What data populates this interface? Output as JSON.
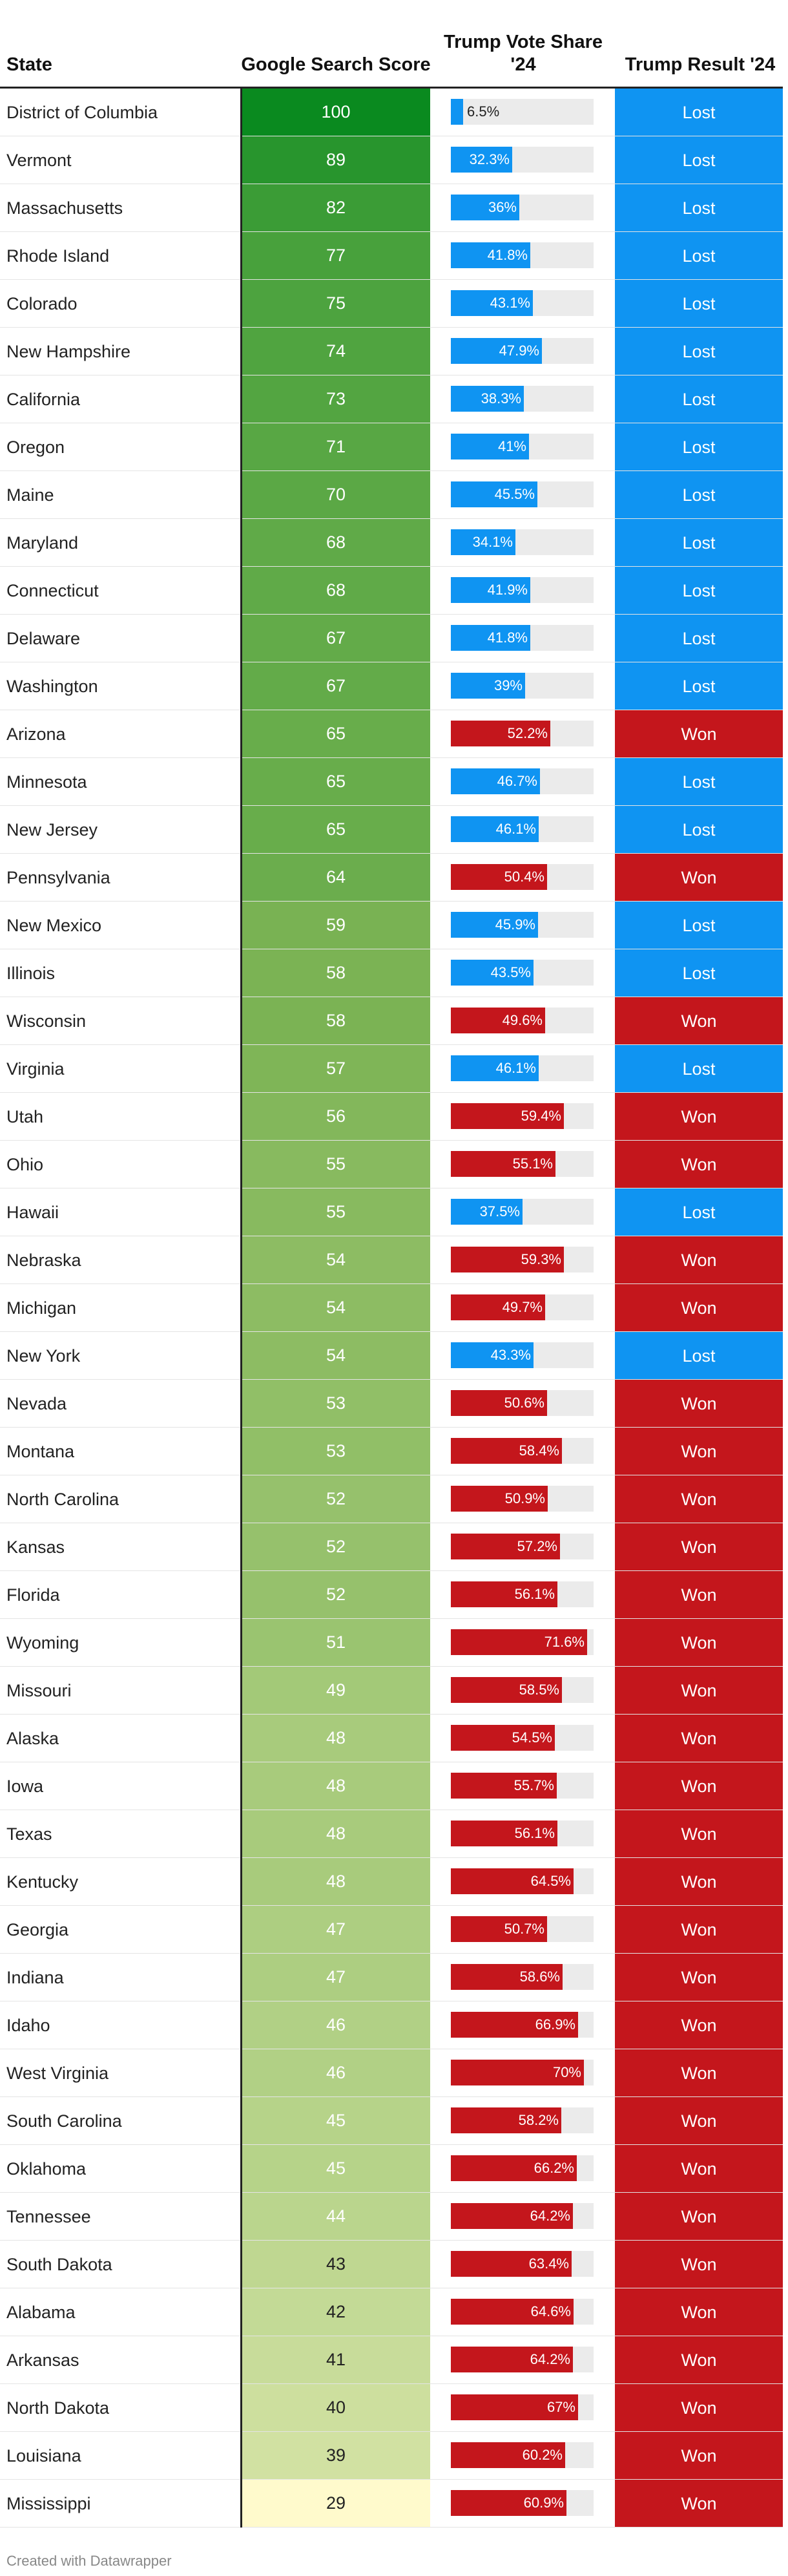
{
  "header": {
    "state": "State",
    "score": "Google Search Score",
    "share": "Trump Vote Share '24",
    "result": "Trump Result '24"
  },
  "footer": "Created with Datawrapper",
  "colors": {
    "lost": "#0f94f2",
    "won": "#c4161c",
    "score_high": "#0a8a1f",
    "score_low": "#fffacc",
    "track": "#ebebeb"
  },
  "chart_data": {
    "type": "table",
    "columns": [
      "State",
      "Google Search Score",
      "Trump Vote Share '24",
      "Trump Result '24"
    ],
    "share_range": [
      0,
      75
    ],
    "rows": [
      {
        "state": "District of Columbia",
        "score": 100,
        "share": 6.5,
        "share_label": "6.5%",
        "result": "Lost"
      },
      {
        "state": "Vermont",
        "score": 89,
        "share": 32.3,
        "share_label": "32.3%",
        "result": "Lost"
      },
      {
        "state": "Massachusetts",
        "score": 82,
        "share": 36,
        "share_label": "36%",
        "result": "Lost"
      },
      {
        "state": "Rhode Island",
        "score": 77,
        "share": 41.8,
        "share_label": "41.8%",
        "result": "Lost"
      },
      {
        "state": "Colorado",
        "score": 75,
        "share": 43.1,
        "share_label": "43.1%",
        "result": "Lost"
      },
      {
        "state": "New Hampshire",
        "score": 74,
        "share": 47.9,
        "share_label": "47.9%",
        "result": "Lost"
      },
      {
        "state": "California",
        "score": 73,
        "share": 38.3,
        "share_label": "38.3%",
        "result": "Lost"
      },
      {
        "state": "Oregon",
        "score": 71,
        "share": 41,
        "share_label": "41%",
        "result": "Lost"
      },
      {
        "state": "Maine",
        "score": 70,
        "share": 45.5,
        "share_label": "45.5%",
        "result": "Lost"
      },
      {
        "state": "Maryland",
        "score": 68,
        "share": 34.1,
        "share_label": "34.1%",
        "result": "Lost"
      },
      {
        "state": "Connecticut",
        "score": 68,
        "share": 41.9,
        "share_label": "41.9%",
        "result": "Lost"
      },
      {
        "state": "Delaware",
        "score": 67,
        "share": 41.8,
        "share_label": "41.8%",
        "result": "Lost"
      },
      {
        "state": "Washington",
        "score": 67,
        "share": 39,
        "share_label": "39%",
        "result": "Lost"
      },
      {
        "state": "Arizona",
        "score": 65,
        "share": 52.2,
        "share_label": "52.2%",
        "result": "Won"
      },
      {
        "state": "Minnesota",
        "score": 65,
        "share": 46.7,
        "share_label": "46.7%",
        "result": "Lost"
      },
      {
        "state": "New Jersey",
        "score": 65,
        "share": 46.1,
        "share_label": "46.1%",
        "result": "Lost"
      },
      {
        "state": "Pennsylvania",
        "score": 64,
        "share": 50.4,
        "share_label": "50.4%",
        "result": "Won"
      },
      {
        "state": "New Mexico",
        "score": 59,
        "share": 45.9,
        "share_label": "45.9%",
        "result": "Lost"
      },
      {
        "state": "Illinois",
        "score": 58,
        "share": 43.5,
        "share_label": "43.5%",
        "result": "Lost"
      },
      {
        "state": "Wisconsin",
        "score": 58,
        "share": 49.6,
        "share_label": "49.6%",
        "result": "Won"
      },
      {
        "state": "Virginia",
        "score": 57,
        "share": 46.1,
        "share_label": "46.1%",
        "result": "Lost"
      },
      {
        "state": "Utah",
        "score": 56,
        "share": 59.4,
        "share_label": "59.4%",
        "result": "Won"
      },
      {
        "state": "Ohio",
        "score": 55,
        "share": 55.1,
        "share_label": "55.1%",
        "result": "Won"
      },
      {
        "state": "Hawaii",
        "score": 55,
        "share": 37.5,
        "share_label": "37.5%",
        "result": "Lost"
      },
      {
        "state": "Nebraska",
        "score": 54,
        "share": 59.3,
        "share_label": "59.3%",
        "result": "Won"
      },
      {
        "state": "Michigan",
        "score": 54,
        "share": 49.7,
        "share_label": "49.7%",
        "result": "Won"
      },
      {
        "state": "New York",
        "score": 54,
        "share": 43.3,
        "share_label": "43.3%",
        "result": "Lost"
      },
      {
        "state": "Nevada",
        "score": 53,
        "share": 50.6,
        "share_label": "50.6%",
        "result": "Won"
      },
      {
        "state": "Montana",
        "score": 53,
        "share": 58.4,
        "share_label": "58.4%",
        "result": "Won"
      },
      {
        "state": "North Carolina",
        "score": 52,
        "share": 50.9,
        "share_label": "50.9%",
        "result": "Won"
      },
      {
        "state": "Kansas",
        "score": 52,
        "share": 57.2,
        "share_label": "57.2%",
        "result": "Won"
      },
      {
        "state": "Florida",
        "score": 52,
        "share": 56.1,
        "share_label": "56.1%",
        "result": "Won"
      },
      {
        "state": "Wyoming",
        "score": 51,
        "share": 71.6,
        "share_label": "71.6%",
        "result": "Won"
      },
      {
        "state": "Missouri",
        "score": 49,
        "share": 58.5,
        "share_label": "58.5%",
        "result": "Won"
      },
      {
        "state": "Alaska",
        "score": 48,
        "share": 54.5,
        "share_label": "54.5%",
        "result": "Won"
      },
      {
        "state": "Iowa",
        "score": 48,
        "share": 55.7,
        "share_label": "55.7%",
        "result": "Won"
      },
      {
        "state": "Texas",
        "score": 48,
        "share": 56.1,
        "share_label": "56.1%",
        "result": "Won"
      },
      {
        "state": "Kentucky",
        "score": 48,
        "share": 64.5,
        "share_label": "64.5%",
        "result": "Won"
      },
      {
        "state": "Georgia",
        "score": 47,
        "share": 50.7,
        "share_label": "50.7%",
        "result": "Won"
      },
      {
        "state": "Indiana",
        "score": 47,
        "share": 58.6,
        "share_label": "58.6%",
        "result": "Won"
      },
      {
        "state": "Idaho",
        "score": 46,
        "share": 66.9,
        "share_label": "66.9%",
        "result": "Won"
      },
      {
        "state": "West Virginia",
        "score": 46,
        "share": 70,
        "share_label": "70%",
        "result": "Won"
      },
      {
        "state": "South Carolina",
        "score": 45,
        "share": 58.2,
        "share_label": "58.2%",
        "result": "Won"
      },
      {
        "state": "Oklahoma",
        "score": 45,
        "share": 66.2,
        "share_label": "66.2%",
        "result": "Won"
      },
      {
        "state": "Tennessee",
        "score": 44,
        "share": 64.2,
        "share_label": "64.2%",
        "result": "Won"
      },
      {
        "state": "South Dakota",
        "score": 43,
        "share": 63.4,
        "share_label": "63.4%",
        "result": "Won"
      },
      {
        "state": "Alabama",
        "score": 42,
        "share": 64.6,
        "share_label": "64.6%",
        "result": "Won"
      },
      {
        "state": "Arkansas",
        "score": 41,
        "share": 64.2,
        "share_label": "64.2%",
        "result": "Won"
      },
      {
        "state": "North Dakota",
        "score": 40,
        "share": 67,
        "share_label": "67%",
        "result": "Won"
      },
      {
        "state": "Louisiana",
        "score": 39,
        "share": 60.2,
        "share_label": "60.2%",
        "result": "Won"
      },
      {
        "state": "Mississippi",
        "score": 29,
        "share": 60.9,
        "share_label": "60.9%",
        "result": "Won"
      }
    ]
  }
}
